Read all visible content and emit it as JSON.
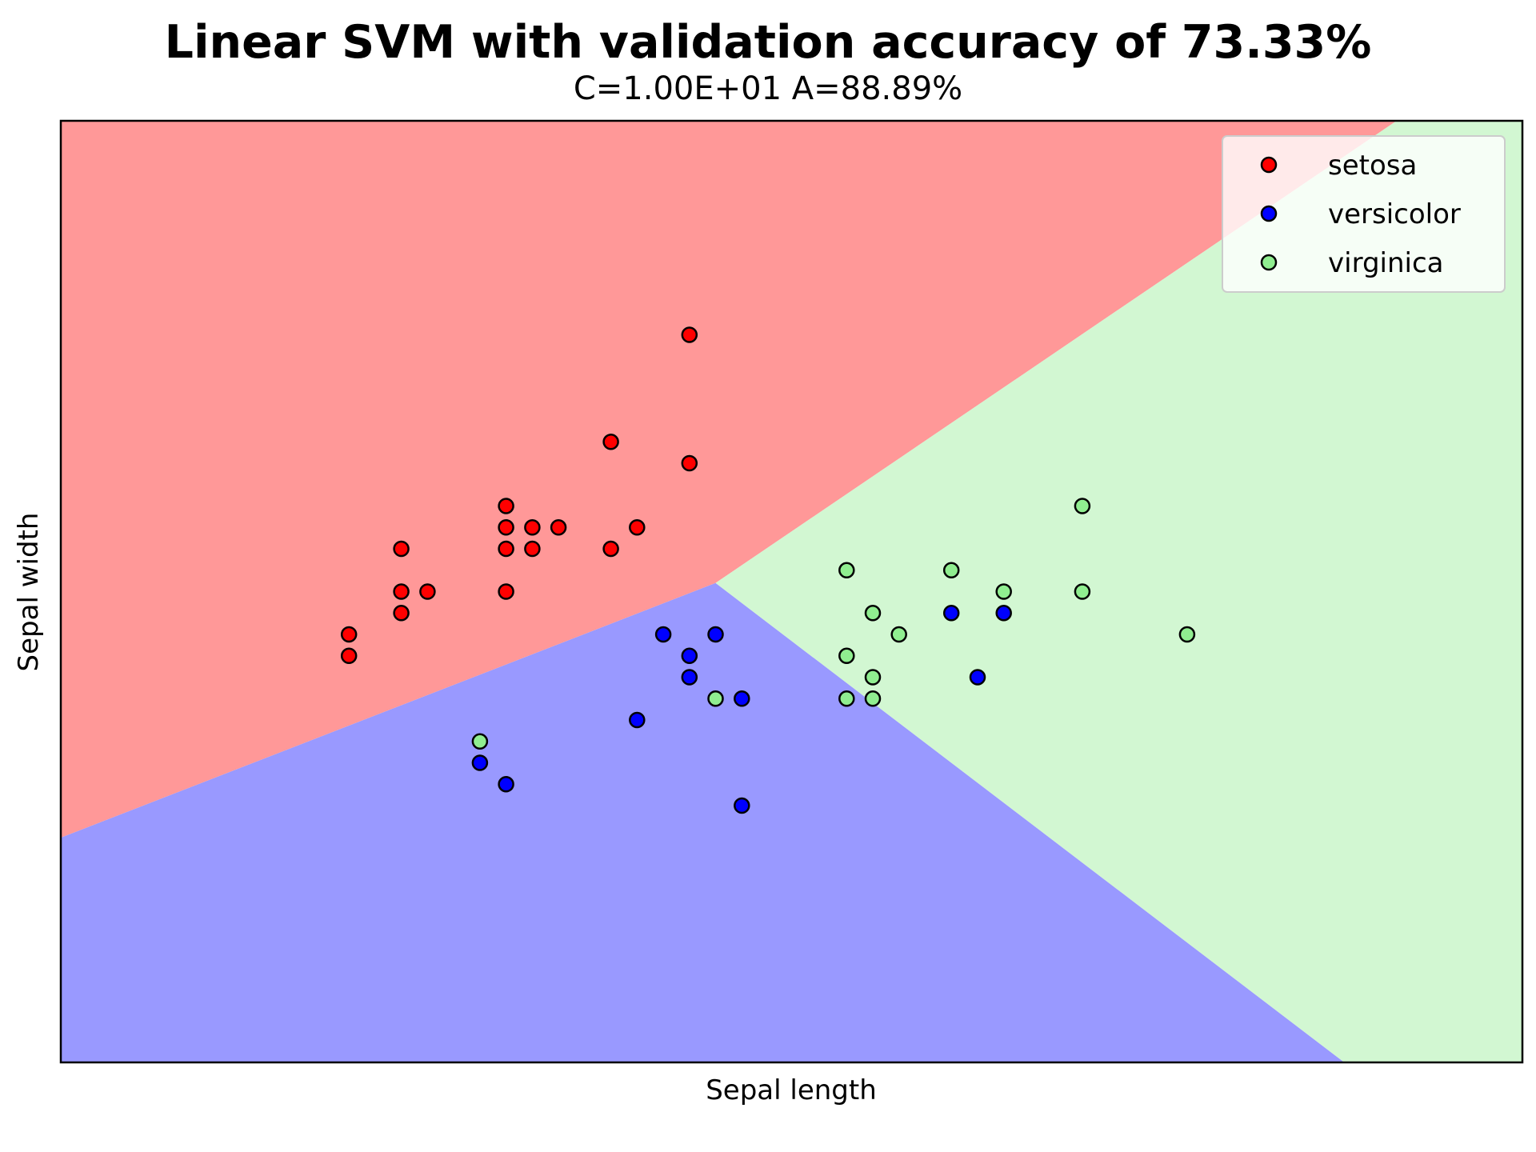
{
  "chart_data": {
    "type": "scatter",
    "title": "Linear SVM with validation accuracy of 73.33%",
    "subtitle": "C=1.00E+01 A=88.89%",
    "xlabel": "Sepal length",
    "ylabel": "Sepal width",
    "xlim": [
      3.3,
      8.88
    ],
    "ylim": [
      1.0,
      5.4
    ],
    "ticks_visible": false,
    "legend_position": "top-right",
    "regions": [
      {
        "class": "setosa",
        "color": "#ff9898"
      },
      {
        "class": "versicolor",
        "color": "#9999ff"
      },
      {
        "class": "virginica",
        "color": "#d2f7d2"
      }
    ],
    "series": [
      {
        "name": "setosa",
        "color": "#ff0000",
        "points": [
          [
            4.4,
            2.9
          ],
          [
            4.4,
            3.0
          ],
          [
            4.6,
            3.1
          ],
          [
            4.6,
            3.2
          ],
          [
            4.6,
            3.4
          ],
          [
            4.7,
            3.2
          ],
          [
            5.0,
            3.2
          ],
          [
            5.0,
            3.4
          ],
          [
            5.0,
            3.5
          ],
          [
            5.0,
            3.6
          ],
          [
            5.1,
            3.4
          ],
          [
            5.1,
            3.5
          ],
          [
            5.2,
            3.5
          ],
          [
            5.4,
            3.4
          ],
          [
            5.4,
            3.9
          ],
          [
            5.5,
            3.5
          ],
          [
            5.7,
            3.8
          ],
          [
            5.7,
            4.4
          ]
        ]
      },
      {
        "name": "versicolor",
        "color": "#0000ff",
        "points": [
          [
            4.9,
            2.4
          ],
          [
            5.0,
            2.3
          ],
          [
            5.5,
            2.6
          ],
          [
            5.6,
            3.0
          ],
          [
            5.7,
            2.8
          ],
          [
            5.7,
            2.9
          ],
          [
            5.8,
            3.0
          ],
          [
            5.9,
            2.7
          ],
          [
            5.9,
            2.2
          ],
          [
            6.7,
            3.1
          ],
          [
            6.8,
            2.8
          ],
          [
            6.9,
            3.1
          ]
        ]
      },
      {
        "name": "virginica",
        "color": "#90ee90",
        "points": [
          [
            4.9,
            2.5
          ],
          [
            5.8,
            2.7
          ],
          [
            6.3,
            3.3
          ],
          [
            6.3,
            2.9
          ],
          [
            6.3,
            2.7
          ],
          [
            6.4,
            3.1
          ],
          [
            6.4,
            2.8
          ],
          [
            6.4,
            2.7
          ],
          [
            6.5,
            3.0
          ],
          [
            6.7,
            3.3
          ],
          [
            6.9,
            3.2
          ],
          [
            7.2,
            3.6
          ],
          [
            7.2,
            3.2
          ],
          [
            7.6,
            3.0
          ]
        ]
      }
    ]
  }
}
